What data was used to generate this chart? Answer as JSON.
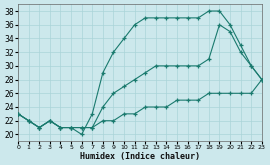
{
  "xlabel": "Humidex (Indice chaleur)",
  "bg_color": "#cce8ec",
  "grid_color": "#aad4d8",
  "line_color": "#1a7a6e",
  "xlim": [
    0,
    23
  ],
  "ylim": [
    19,
    39
  ],
  "xticks": [
    0,
    1,
    2,
    3,
    4,
    5,
    6,
    7,
    8,
    9,
    10,
    11,
    12,
    13,
    14,
    15,
    16,
    17,
    18,
    19,
    20,
    21,
    22,
    23
  ],
  "yticks": [
    20,
    22,
    24,
    26,
    28,
    30,
    32,
    34,
    36,
    38
  ],
  "line1_x": [
    0,
    1,
    2,
    3,
    4,
    5,
    6,
    7,
    8,
    9,
    10,
    11,
    12,
    13,
    14,
    15,
    16,
    17,
    18,
    19,
    20,
    21,
    22,
    23
  ],
  "line1_y": [
    23,
    22,
    21,
    22,
    21,
    21,
    20,
    23,
    29,
    32,
    34,
    36,
    37,
    37,
    37,
    37,
    37,
    37,
    38,
    38,
    36,
    33,
    30,
    28
  ],
  "line2_x": [
    0,
    1,
    2,
    3,
    4,
    5,
    6,
    7,
    8,
    9,
    10,
    11,
    12,
    13,
    14,
    15,
    16,
    17,
    18,
    19,
    20,
    21,
    22,
    23
  ],
  "line2_y": [
    23,
    22,
    21,
    22,
    21,
    21,
    21,
    21,
    24,
    26,
    27,
    28,
    29,
    30,
    30,
    30,
    30,
    30,
    31,
    36,
    35,
    32,
    30,
    28
  ],
  "line3_x": [
    0,
    1,
    2,
    3,
    4,
    5,
    6,
    7,
    8,
    9,
    10,
    11,
    12,
    13,
    14,
    15,
    16,
    17,
    18,
    19,
    20,
    21,
    22,
    23
  ],
  "line3_y": [
    23,
    22,
    21,
    22,
    21,
    21,
    21,
    21,
    22,
    22,
    23,
    23,
    24,
    24,
    24,
    25,
    25,
    25,
    26,
    26,
    26,
    26,
    26,
    28
  ]
}
